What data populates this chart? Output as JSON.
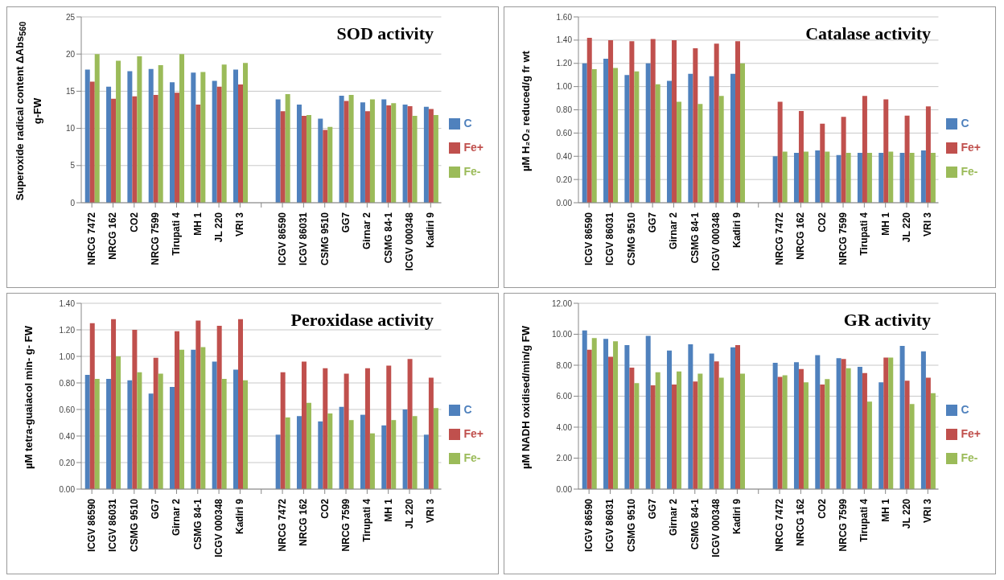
{
  "chart_data": [
    {
      "type": "bar",
      "title": "SOD activity",
      "ylabel": "Superoxide radical content ΔAbs$_{560}$ g-FW",
      "categories": [
        "NRCG 7472",
        "NRCG 162",
        "CO2",
        "NRCG 7599",
        "Tirupati 4",
        "MH 1",
        "JL 220",
        "VRI 3",
        null,
        "ICGV 86590",
        "ICGV 86031",
        "CSMG 9510",
        "GG7",
        "Girnar 2",
        "CSMG 84-1",
        "ICGV 000348",
        "Kadiri 9"
      ],
      "series": [
        {
          "name": "C",
          "color": "#4f81bd",
          "values": [
            17.9,
            15.6,
            17.7,
            18.0,
            16.2,
            17.5,
            16.4,
            17.9,
            null,
            13.9,
            13.2,
            11.3,
            14.4,
            13.5,
            13.9,
            13.2,
            12.9
          ]
        },
        {
          "name": "Fe+",
          "color": "#c0504d",
          "values": [
            16.3,
            14.0,
            14.3,
            14.5,
            14.8,
            13.2,
            15.6,
            15.9,
            null,
            12.3,
            11.7,
            9.8,
            13.7,
            12.3,
            13.1,
            13.0,
            12.6
          ]
        },
        {
          "name": "Fe-",
          "color": "#9bbb59",
          "values": [
            20.0,
            19.1,
            19.7,
            18.5,
            20.0,
            17.6,
            18.6,
            18.8,
            null,
            14.6,
            11.8,
            10.2,
            14.5,
            13.9,
            13.4,
            11.7,
            11.8
          ]
        }
      ],
      "ylim": [
        0,
        25
      ],
      "yticks": [
        0,
        5,
        10,
        15,
        20,
        25
      ],
      "grid": "y",
      "legend": "right"
    },
    {
      "type": "bar",
      "title": "Catalase activity",
      "ylabel": "µM H₂O₂ reduced/g fr wt",
      "categories": [
        "ICGV 86590",
        "ICGV 86031",
        "CSMG 9510",
        "GG7",
        "Girnar 2",
        "CSMG 84-1",
        "ICGV 000348",
        "Kadiri 9",
        null,
        "NRCG 7472",
        "NRCG 162",
        "CO2",
        "NRCG 7599",
        "Tirupati 4",
        "MH 1",
        "JL 220",
        "VRI 3"
      ],
      "series": [
        {
          "name": "C",
          "color": "#4f81bd",
          "values": [
            1.2,
            1.24,
            1.1,
            1.2,
            1.05,
            1.11,
            1.09,
            1.11,
            null,
            0.4,
            0.43,
            0.45,
            0.41,
            0.43,
            0.43,
            0.43,
            0.45
          ]
        },
        {
          "name": "Fe+",
          "color": "#c0504d",
          "values": [
            1.42,
            1.4,
            1.39,
            1.41,
            1.4,
            1.33,
            1.37,
            1.39,
            null,
            0.87,
            0.79,
            0.68,
            0.74,
            0.92,
            0.89,
            0.75,
            0.83
          ]
        },
        {
          "name": "Fe-",
          "color": "#9bbb59",
          "values": [
            1.15,
            1.16,
            1.13,
            1.02,
            0.87,
            0.85,
            0.92,
            1.2,
            null,
            0.44,
            0.44,
            0.44,
            0.43,
            0.43,
            0.44,
            0.43,
            0.43
          ]
        }
      ],
      "ylim": [
        0,
        1.6
      ],
      "yticks": [
        {
          "value": 0,
          "label": "0.00"
        },
        {
          "value": 0.2,
          "label": "0.20"
        },
        {
          "value": 0.4,
          "label": "0.40"
        },
        {
          "value": 0.6,
          "label": "0.60"
        },
        {
          "value": 0.8,
          "label": "0.80"
        },
        {
          "value": 1,
          "label": "1.00"
        },
        {
          "value": 1.2,
          "label": "1.20"
        },
        {
          "value": 1.4,
          "label": "1.40"
        },
        {
          "value": 1.6,
          "label": "1.60"
        }
      ],
      "grid": "y",
      "legend": "right"
    },
    {
      "type": "bar",
      "title": "Peroxidase activity",
      "ylabel": "µM tetra-guaiacol min- g- FW",
      "categories": [
        "ICGV 86590",
        "ICGV 86031",
        "CSMG 9510",
        "GG7",
        "Girnar 2",
        "CSMG 84-1",
        "ICGV 000348",
        "Kadiri 9",
        null,
        "NRCG 7472",
        "NRCG 162",
        "CO2",
        "NRCG 7599",
        "Tirupati 4",
        "MH 1",
        "JL 220",
        "VRI 3"
      ],
      "series": [
        {
          "name": "C",
          "color": "#4f81bd",
          "values": [
            0.86,
            0.83,
            0.82,
            0.72,
            0.77,
            1.05,
            0.96,
            0.9,
            null,
            0.41,
            0.55,
            0.51,
            0.62,
            0.56,
            0.48,
            0.6,
            0.41
          ]
        },
        {
          "name": "Fe+",
          "color": "#c0504d",
          "values": [
            1.25,
            1.28,
            1.2,
            0.99,
            1.19,
            1.27,
            1.23,
            1.28,
            null,
            0.88,
            0.96,
            0.91,
            0.87,
            0.91,
            0.93,
            0.98,
            0.84
          ]
        },
        {
          "name": "Fe-",
          "color": "#9bbb59",
          "values": [
            0.83,
            1.0,
            0.88,
            0.87,
            1.05,
            1.07,
            0.83,
            0.82,
            null,
            0.54,
            0.65,
            0.57,
            0.52,
            0.42,
            0.52,
            0.55,
            0.61
          ]
        }
      ],
      "ylim": [
        0,
        1.4
      ],
      "yticks": [
        {
          "value": 0,
          "label": "0.00"
        },
        {
          "value": 0.2,
          "label": "0.20"
        },
        {
          "value": 0.4,
          "label": "0.40"
        },
        {
          "value": 0.6,
          "label": "0.60"
        },
        {
          "value": 0.8,
          "label": "0.80"
        },
        {
          "value": 1,
          "label": "1.00"
        },
        {
          "value": 1.2,
          "label": "1.20"
        },
        {
          "value": 1.4,
          "label": "1.40"
        }
      ],
      "grid": "y",
      "legend": "right"
    },
    {
      "type": "bar",
      "title": "GR activity",
      "ylabel": "µM NADH oxidised/min/g FW",
      "categories": [
        "ICGV 86590",
        "ICGV 86031",
        "CSMG 9510",
        "GG7",
        "Girnar 2",
        "CSMG 84-1",
        "ICGV 000348",
        "Kadiri 9",
        null,
        "NRCG 7472",
        "NRCG 162",
        "CO2",
        "NRCG 7599",
        "Tirupati 4",
        "MH 1",
        "JL 220",
        "VRI 3"
      ],
      "series": [
        {
          "name": "C",
          "color": "#4f81bd",
          "values": [
            10.25,
            9.7,
            9.3,
            9.9,
            8.95,
            9.35,
            8.75,
            9.15,
            null,
            8.15,
            8.2,
            8.65,
            8.45,
            7.9,
            6.9,
            9.25,
            8.9
          ]
        },
        {
          "name": "Fe+",
          "color": "#c0504d",
          "values": [
            9.0,
            8.55,
            7.85,
            6.7,
            6.75,
            6.95,
            8.25,
            9.3,
            null,
            7.25,
            7.75,
            6.75,
            8.4,
            7.5,
            8.5,
            7.0,
            7.2
          ]
        },
        {
          "name": "Fe-",
          "color": "#9bbb59",
          "values": [
            9.75,
            9.55,
            6.85,
            7.55,
            7.6,
            7.45,
            7.2,
            7.45,
            null,
            7.35,
            6.9,
            7.1,
            7.8,
            5.65,
            8.5,
            5.5,
            6.2
          ]
        }
      ],
      "ylim": [
        0,
        12
      ],
      "yticks": [
        {
          "value": 0,
          "label": "0.00"
        },
        {
          "value": 2,
          "label": "2.00"
        },
        {
          "value": 4,
          "label": "4.00"
        },
        {
          "value": 6,
          "label": "6.00"
        },
        {
          "value": 8,
          "label": "8.00"
        },
        {
          "value": 10,
          "label": "10.00"
        },
        {
          "value": 12,
          "label": "12.00"
        }
      ],
      "grid": "y",
      "legend": "right"
    }
  ]
}
